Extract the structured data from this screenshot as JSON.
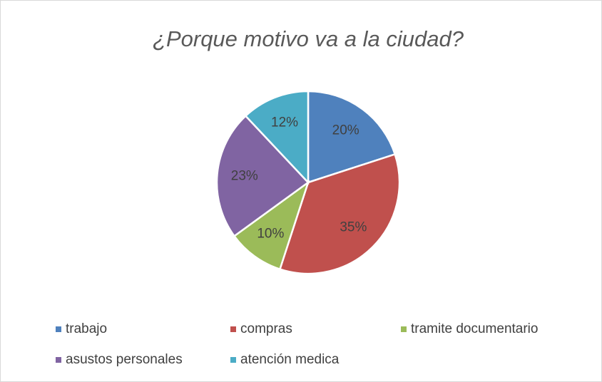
{
  "chart_data": {
    "type": "pie",
    "title": "¿Porque motivo va a la ciudad?",
    "categories": [
      "trabajo",
      "compras",
      "tramite documentario",
      "asustos personales",
      "atención medica"
    ],
    "values": [
      20,
      35,
      10,
      23,
      12
    ],
    "value_labels": [
      "20%",
      "35%",
      "10%",
      "23%",
      "12%"
    ],
    "colors": [
      "#4f81bd",
      "#c0504d",
      "#9bbb59",
      "#8064a2",
      "#4bacc6"
    ],
    "legend": "bottom"
  }
}
